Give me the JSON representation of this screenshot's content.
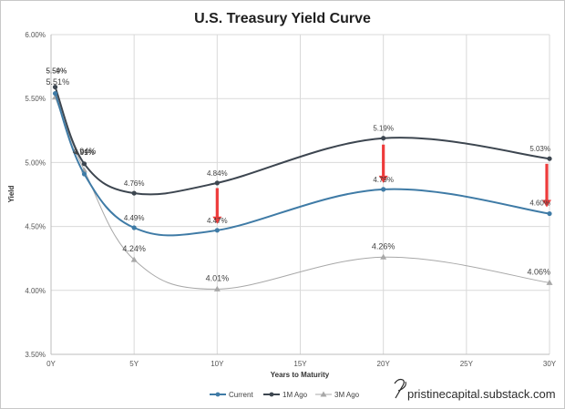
{
  "chart_data": {
    "type": "line",
    "title": "U.S. Treasury Yield Curve",
    "xlabel": "Years to Maturity",
    "ylabel": "Yield",
    "xlim": [
      0,
      30
    ],
    "ylim": [
      3.5,
      6.0
    ],
    "x_ticks": [
      0,
      5,
      10,
      15,
      20,
      25,
      30
    ],
    "x_tick_labels": [
      "0Y",
      "5Y",
      "10Y",
      "15Y",
      "20Y",
      "25Y",
      "30Y"
    ],
    "y_ticks": [
      3.5,
      4.0,
      4.5,
      5.0,
      5.5,
      6.0
    ],
    "y_tick_labels": [
      "3.50%",
      "4.00%",
      "4.50%",
      "5.00%",
      "5.50%",
      "6.00%"
    ],
    "grid": true,
    "legend_position": "bottom",
    "series": [
      {
        "name": "Current",
        "color": "#3f7ba6",
        "marker": "circle",
        "x": [
          0.25,
          2,
          5,
          10,
          20,
          30
        ],
        "values": [
          5.54,
          4.91,
          4.49,
          4.47,
          4.79,
          4.6
        ],
        "labels": [
          "5.54%",
          "4.91%",
          "4.49%",
          "4.47%",
          "4.79%",
          "4.60%"
        ]
      },
      {
        "name": "1M Ago",
        "color": "#3d4650",
        "marker": "circle",
        "x": [
          0.25,
          2,
          5,
          10,
          20,
          30
        ],
        "values": [
          5.59,
          4.99,
          4.76,
          4.84,
          5.19,
          5.03
        ],
        "labels": [
          "5.59%",
          "4.99%",
          "4.76%",
          "4.84%",
          "5.19%",
          "5.03%"
        ]
      },
      {
        "name": "3M Ago",
        "color": "#a8a8a8",
        "marker": "triangle",
        "x": [
          0.25,
          2,
          5,
          10,
          20,
          30
        ],
        "values": [
          5.51,
          4.94,
          4.24,
          4.01,
          4.26,
          4.06
        ],
        "labels": [
          "5.51%",
          "4.94%",
          "4.24%",
          "4.01%",
          "4.26%",
          "4.06%"
        ]
      }
    ],
    "annotations": [
      {
        "type": "arrow",
        "color": "#ee3b3b",
        "x": 10,
        "from": 4.8,
        "to": 4.52
      },
      {
        "type": "arrow",
        "color": "#ee3b3b",
        "x": 20,
        "from": 5.14,
        "to": 4.84
      },
      {
        "type": "arrow",
        "color": "#ee3b3b",
        "x": 30,
        "from": 4.99,
        "to": 4.65
      }
    ]
  },
  "watermark": {
    "text": "pristinecapital.substack.com",
    "logo_letter": "P"
  }
}
